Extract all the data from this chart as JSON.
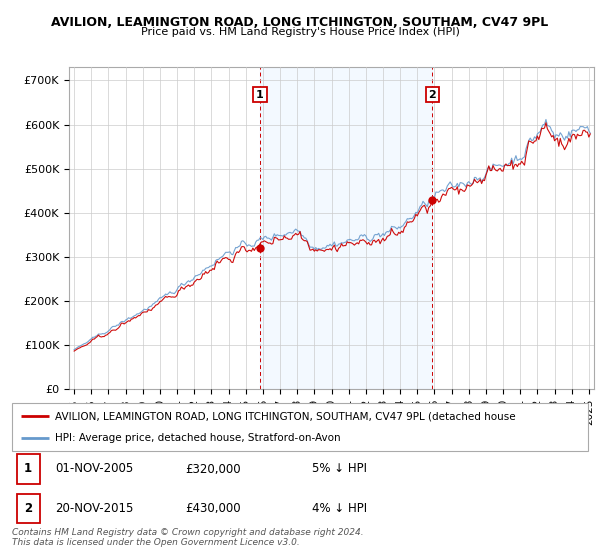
{
  "title1": "AVILION, LEAMINGTON ROAD, LONG ITCHINGTON, SOUTHAM, CV47 9PL",
  "title2": "Price paid vs. HM Land Registry's House Price Index (HPI)",
  "ylabel_ticks": [
    "£0",
    "£100K",
    "£200K",
    "£300K",
    "£400K",
    "£500K",
    "£600K",
    "£700K"
  ],
  "ytick_values": [
    0,
    100000,
    200000,
    300000,
    400000,
    500000,
    600000,
    700000
  ],
  "ylim": [
    0,
    730000
  ],
  "xlim_start": 1994.7,
  "xlim_end": 2025.3,
  "sale1_x": 2005.83,
  "sale1_y": 320000,
  "sale1_label": "1",
  "sale2_x": 2015.88,
  "sale2_y": 430000,
  "sale2_label": "2",
  "legend_line1": "AVILION, LEAMINGTON ROAD, LONG ITCHINGTON, SOUTHAM, CV47 9PL (detached house",
  "legend_line2": "HPI: Average price, detached house, Stratford-on-Avon",
  "table_rows": [
    {
      "num": "1",
      "date": "01-NOV-2005",
      "price": "£320,000",
      "rel": "5% ↓ HPI"
    },
    {
      "num": "2",
      "date": "20-NOV-2015",
      "price": "£430,000",
      "rel": "4% ↓ HPI"
    }
  ],
  "footer": "Contains HM Land Registry data © Crown copyright and database right 2024.\nThis data is licensed under the Open Government Licence v3.0.",
  "color_red": "#cc0000",
  "color_blue": "#6699cc",
  "color_grid": "#cccccc",
  "color_border": "#aaaaaa",
  "bg_plot": "#ffffff",
  "bg_shade": "#ddeeff",
  "bg_fig": "#ffffff",
  "title1_fontsize": 9,
  "title2_fontsize": 8
}
